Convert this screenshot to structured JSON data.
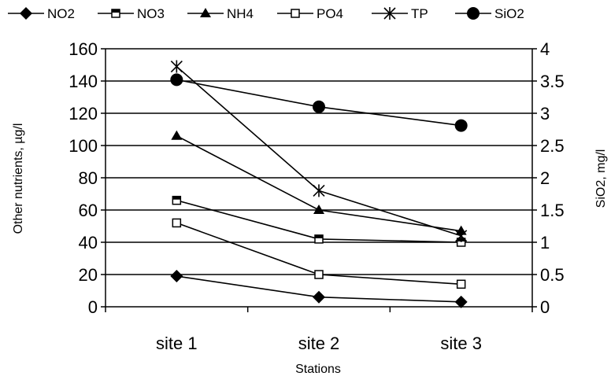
{
  "chart_data": {
    "type": "line",
    "categories": [
      "site 1",
      "site 2",
      "site 3"
    ],
    "xlabel": "Stations",
    "ylabel_left": "Other nutrients, µg/l",
    "ylabel_right": "SiO2, mg/l",
    "ylim_left": [
      0,
      160
    ],
    "ylim_right": [
      0,
      4
    ],
    "yticks_left": [
      "0",
      "20",
      "40",
      "60",
      "80",
      "100",
      "120",
      "140",
      "160"
    ],
    "yticks_right": [
      "0",
      "0.5",
      "1",
      "1.5",
      "2",
      "2.5",
      "3",
      "3.5",
      "4"
    ],
    "grid": true,
    "legend_position": "top",
    "series": [
      {
        "name": "NO2",
        "axis": "left",
        "marker": "diamond",
        "values": [
          19,
          6,
          3
        ]
      },
      {
        "name": "NO3",
        "axis": "left",
        "marker": "square-bar",
        "values": [
          66,
          42,
          40
        ]
      },
      {
        "name": "NH4",
        "axis": "left",
        "marker": "triangle",
        "values": [
          106,
          60,
          47
        ]
      },
      {
        "name": "PO4",
        "axis": "left",
        "marker": "square-open",
        "values": [
          52,
          20,
          14
        ]
      },
      {
        "name": "TP",
        "axis": "left",
        "marker": "star",
        "values": [
          149,
          72,
          44
        ]
      },
      {
        "name": "SiO2",
        "axis": "right",
        "marker": "circle",
        "values": [
          3.52,
          3.1,
          2.81
        ]
      }
    ]
  }
}
